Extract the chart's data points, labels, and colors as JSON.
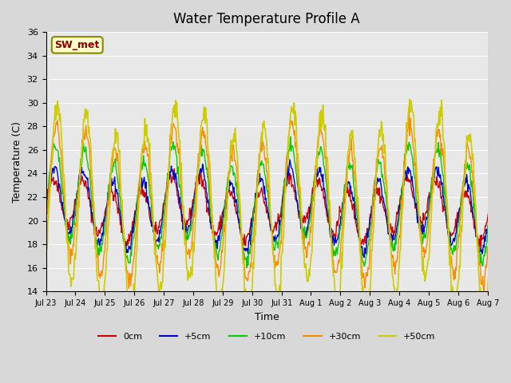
{
  "title": "Water Temperature Profile A",
  "xlabel": "Time",
  "ylabel": "Temperature (C)",
  "ylim": [
    14,
    36
  ],
  "yticks": [
    14,
    16,
    18,
    20,
    22,
    24,
    26,
    28,
    30,
    32,
    34,
    36
  ],
  "fig_bg_color": "#d8d8d8",
  "plot_bg_color": "#e8e8e8",
  "legend_label": "SW_met",
  "series_colors": {
    "0cm": "#cc0000",
    "+5cm": "#0000cc",
    "+10cm": "#00cc00",
    "+30cm": "#ff8800",
    "+50cm": "#cccc00"
  },
  "xtick_labels": [
    "Jul 23",
    "Jul 24",
    "Jul 25",
    "Jul 26",
    "Jul 27",
    "Jul 28",
    "Jul 29",
    "Jul 30",
    "Jul 31",
    "Aug 1",
    "Aug 2",
    "Aug 3",
    "Aug 4",
    "Aug 5",
    "Aug 6",
    "Aug 7"
  ]
}
